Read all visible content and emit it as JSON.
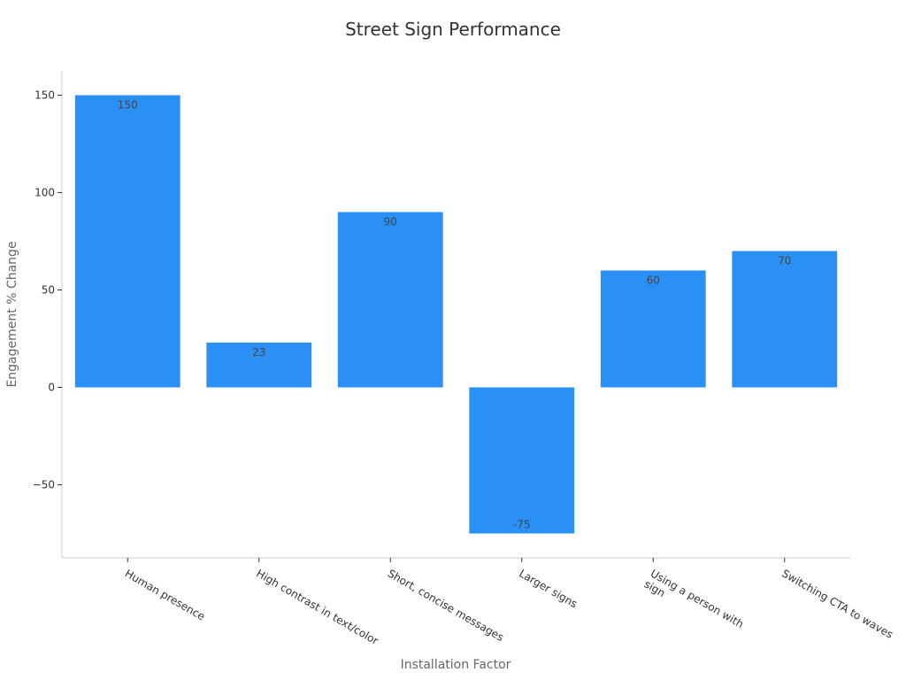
{
  "chart_data": {
    "type": "bar",
    "title": "Street Sign Performance",
    "xlabel": "Installation Factor",
    "ylabel": "Engagement % Change",
    "categories": [
      [
        "Human presence"
      ],
      [
        "High contrast in text/color"
      ],
      [
        "Short, concise messages"
      ],
      [
        "Larger signs"
      ],
      [
        "Using a person with",
        "sign"
      ],
      [
        "Switching CTA to waves"
      ]
    ],
    "values": [
      150,
      23,
      90,
      -75,
      60,
      70
    ],
    "data_labels": [
      "150",
      "23",
      "90",
      "-75",
      "60",
      "70"
    ],
    "ylim": [
      -87.5,
      162.5
    ],
    "yticks": [
      -50,
      0,
      50,
      100,
      150
    ],
    "ytick_labels": [
      "−50",
      "0",
      "50",
      "100",
      "150"
    ],
    "bar_color": "#2b90f5",
    "grid": false,
    "legend": "none"
  }
}
